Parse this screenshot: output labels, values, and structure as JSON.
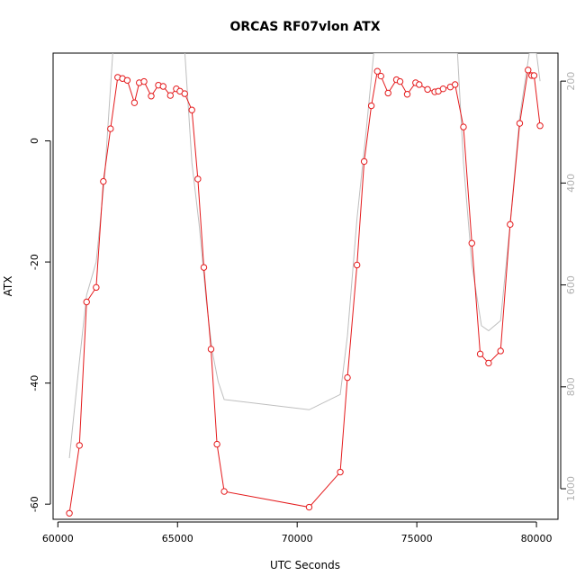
{
  "chart_data": {
    "type": "line",
    "title": "ORCAS RF07vlon ATX",
    "xlabel": "UTC Seconds",
    "ylabel": "ATX",
    "xlim": [
      59800,
      80900
    ],
    "ylim": [
      -62.5,
      14.5
    ],
    "y2lim": [
      1060,
      145
    ],
    "x_ticks": [
      60000,
      65000,
      70000,
      75000,
      80000
    ],
    "y_ticks": [
      -60,
      -40,
      -20,
      0
    ],
    "y2_ticks": [
      200,
      400,
      600,
      800,
      1000
    ],
    "grid": false,
    "legend": "none",
    "series": [
      {
        "color": "#e41a1c",
        "points": [
          [
            60480,
            -61.5
          ],
          [
            60900,
            -50.3
          ],
          [
            61200,
            -26.6
          ],
          [
            61600,
            -24.2
          ],
          [
            61900,
            -6.7
          ],
          [
            62200,
            2.0
          ],
          [
            62500,
            10.5
          ],
          [
            62700,
            10.3
          ],
          [
            62900,
            10.0
          ],
          [
            63200,
            6.3
          ],
          [
            63400,
            9.6
          ],
          [
            63600,
            9.8
          ],
          [
            63900,
            7.4
          ],
          [
            64200,
            9.2
          ],
          [
            64400,
            9.0
          ],
          [
            64700,
            7.5
          ],
          [
            64950,
            8.6
          ],
          [
            65100,
            8.2
          ],
          [
            65300,
            7.8
          ],
          [
            65600,
            5.1
          ],
          [
            65850,
            -6.3
          ],
          [
            66100,
            -20.9
          ],
          [
            66400,
            -34.4
          ],
          [
            66650,
            -50.1
          ],
          [
            66950,
            -57.9
          ],
          [
            70500,
            -60.5
          ],
          [
            71800,
            -54.7
          ],
          [
            72100,
            -39.1
          ],
          [
            72500,
            -20.5
          ],
          [
            72800,
            -3.4
          ],
          [
            73100,
            5.8
          ],
          [
            73350,
            11.5
          ],
          [
            73500,
            10.7
          ],
          [
            73800,
            7.9
          ],
          [
            74150,
            10.1
          ],
          [
            74300,
            9.8
          ],
          [
            74600,
            7.7
          ],
          [
            74950,
            9.6
          ],
          [
            75100,
            9.3
          ],
          [
            75450,
            8.5
          ],
          [
            75750,
            8.1
          ],
          [
            75900,
            8.2
          ],
          [
            76100,
            8.6
          ],
          [
            76400,
            8.9
          ],
          [
            76600,
            9.3
          ],
          [
            76950,
            2.3
          ],
          [
            77300,
            -16.9
          ],
          [
            77650,
            -35.2
          ],
          [
            78000,
            -36.7
          ],
          [
            78500,
            -34.7
          ],
          [
            78900,
            -13.8
          ],
          [
            79300,
            2.9
          ],
          [
            79650,
            11.7
          ],
          [
            79800,
            10.8
          ],
          [
            79900,
            10.8
          ],
          [
            80150,
            2.5
          ]
        ]
      },
      {
        "color": "#bebebe",
        "axis": "right",
        "points": [
          [
            60480,
            940
          ],
          [
            60900,
            750
          ],
          [
            61200,
            620
          ],
          [
            61600,
            555
          ],
          [
            61950,
            390
          ],
          [
            62300,
            140
          ],
          [
            65300,
            140
          ],
          [
            65600,
            360
          ],
          [
            65900,
            480
          ],
          [
            66200,
            630
          ],
          [
            66450,
            730
          ],
          [
            66700,
            790
          ],
          [
            66950,
            825
          ],
          [
            70500,
            845
          ],
          [
            71800,
            815
          ],
          [
            72100,
            700
          ],
          [
            72500,
            470
          ],
          [
            72900,
            290
          ],
          [
            73200,
            145
          ],
          [
            76700,
            145
          ],
          [
            76950,
            360
          ],
          [
            77300,
            560
          ],
          [
            77700,
            680
          ],
          [
            78000,
            690
          ],
          [
            78500,
            670
          ],
          [
            78900,
            480
          ],
          [
            79300,
            270
          ],
          [
            79700,
            145
          ],
          [
            80000,
            145
          ],
          [
            80150,
            200
          ]
        ]
      }
    ]
  }
}
